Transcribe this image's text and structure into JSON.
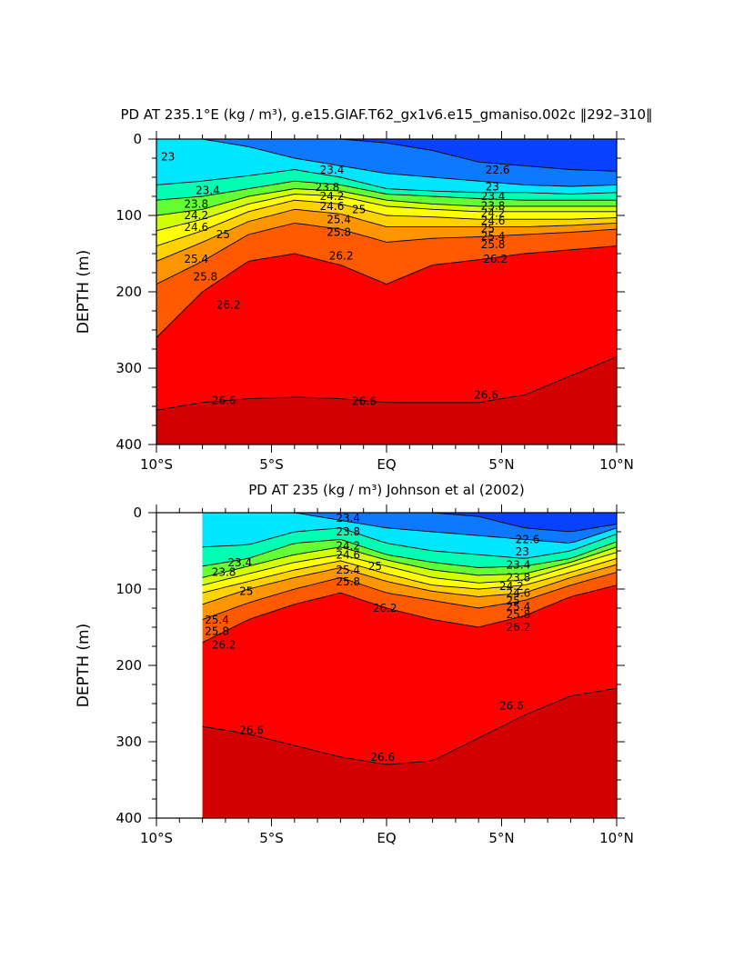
{
  "chart_data": [
    {
      "type": "contour",
      "title": "PD AT 235.1°E (kg / m³), g.e15.GIAF.T62_gx1v6.e15_gmaniso.002c  ‖292–310‖",
      "xlabel": "",
      "ylabel": "DEPTH (m)",
      "xlim": [
        -10,
        10
      ],
      "ylim": [
        400,
        0
      ],
      "x_ticks": [
        -10,
        -5,
        0,
        5,
        10
      ],
      "x_tick_labels": [
        "10°S",
        "5°S",
        "EQ",
        "5°N",
        "10°N"
      ],
      "y_ticks": [
        0,
        100,
        200,
        300,
        400
      ],
      "y_tick_labels": [
        "0",
        "100",
        "200",
        "300",
        "400"
      ],
      "data_xmin": -10,
      "contour_levels": [
        22.6,
        23.0,
        23.4,
        23.8,
        24.2,
        24.6,
        25.0,
        25.4,
        25.8,
        26.2,
        26.6
      ],
      "isopycnal_depth_at_lat": {
        "lat": [
          -10,
          -8,
          -6,
          -4,
          -2,
          0,
          2,
          4,
          6,
          8,
          10
        ],
        "22.6": [
          0,
          0,
          0,
          0,
          0,
          5,
          15,
          30,
          35,
          40,
          42
        ],
        "23.0": [
          0,
          0,
          10,
          25,
          35,
          45,
          50,
          55,
          60,
          62,
          60
        ],
        "23.4": [
          60,
          55,
          48,
          40,
          50,
          65,
          68,
          70,
          70,
          72,
          70
        ],
        "23.8": [
          80,
          75,
          65,
          55,
          60,
          72,
          75,
          78,
          80,
          80,
          80
        ],
        "24.2": [
          100,
          92,
          75,
          65,
          68,
          80,
          85,
          88,
          88,
          88,
          88
        ],
        "24.6": [
          120,
          105,
          85,
          72,
          75,
          88,
          92,
          95,
          95,
          95,
          95
        ],
        "25.0": [
          140,
          120,
          95,
          80,
          85,
          100,
          102,
          105,
          105,
          105,
          103
        ],
        "25.4": [
          160,
          135,
          108,
          92,
          98,
          115,
          115,
          115,
          115,
          113,
          110
        ],
        "25.8": [
          190,
          160,
          125,
          110,
          118,
          135,
          130,
          128,
          125,
          122,
          118
        ],
        "26.2": [
          260,
          200,
          160,
          150,
          165,
          190,
          165,
          158,
          150,
          145,
          140
        ],
        "26.6": [
          355,
          345,
          340,
          338,
          340,
          345,
          345,
          345,
          335,
          310,
          285
        ]
      },
      "labels": [
        {
          "text": "23",
          "lat": -9.8,
          "depth": 28
        },
        {
          "text": "23.4",
          "lat": -8.3,
          "depth": 72
        },
        {
          "text": "23.8",
          "lat": -8.8,
          "depth": 90
        },
        {
          "text": "24.2",
          "lat": -8.8,
          "depth": 105
        },
        {
          "text": "24.6",
          "lat": -8.8,
          "depth": 120
        },
        {
          "text": "25",
          "lat": -7.4,
          "depth": 130
        },
        {
          "text": "25.4",
          "lat": -8.8,
          "depth": 162
        },
        {
          "text": "25.8",
          "lat": -8.4,
          "depth": 185
        },
        {
          "text": "26.2",
          "lat": -7.4,
          "depth": 222
        },
        {
          "text": "23.4",
          "lat": -2.9,
          "depth": 45
        },
        {
          "text": "23.8",
          "lat": -3.1,
          "depth": 68
        },
        {
          "text": "24.2",
          "lat": -2.9,
          "depth": 80
        },
        {
          "text": "24.6",
          "lat": -2.9,
          "depth": 93
        },
        {
          "text": "25",
          "lat": -1.5,
          "depth": 97
        },
        {
          "text": "25.4",
          "lat": -2.6,
          "depth": 110
        },
        {
          "text": "25.8",
          "lat": -2.6,
          "depth": 127
        },
        {
          "text": "26.2",
          "lat": -2.5,
          "depth": 158
        },
        {
          "text": "22.6",
          "lat": 4.3,
          "depth": 45
        },
        {
          "text": "23",
          "lat": 4.3,
          "depth": 67
        },
        {
          "text": "23.4",
          "lat": 4.1,
          "depth": 80
        },
        {
          "text": "23.8",
          "lat": 4.1,
          "depth": 92
        },
        {
          "text": "24.2",
          "lat": 4.1,
          "depth": 102
        },
        {
          "text": "24.6",
          "lat": 4.1,
          "depth": 112
        },
        {
          "text": "25",
          "lat": 4.1,
          "depth": 122
        },
        {
          "text": "25.4",
          "lat": 4.1,
          "depth": 132
        },
        {
          "text": "25.8",
          "lat": 4.1,
          "depth": 143
        },
        {
          "text": "26.2",
          "lat": 4.2,
          "depth": 162
        },
        {
          "text": "26.6",
          "lat": -7.6,
          "depth": 347
        },
        {
          "text": "26.6",
          "lat": -1.5,
          "depth": 348
        },
        {
          "text": "26.6",
          "lat": 3.8,
          "depth": 340
        }
      ]
    },
    {
      "type": "contour",
      "title": "PD AT 235 (kg / m³) Johnson et al (2002)",
      "xlabel": "",
      "ylabel": "DEPTH (m)",
      "xlim": [
        -10,
        10
      ],
      "ylim": [
        400,
        0
      ],
      "x_ticks": [
        -10,
        -5,
        0,
        5,
        10
      ],
      "x_tick_labels": [
        "10°S",
        "5°S",
        "EQ",
        "5°N",
        "10°N"
      ],
      "y_ticks": [
        0,
        100,
        200,
        300,
        400
      ],
      "y_tick_labels": [
        "0",
        "100",
        "200",
        "300",
        "400"
      ],
      "data_xmin": -8,
      "contour_levels": [
        22.6,
        23.0,
        23.4,
        23.8,
        24.2,
        24.6,
        25.0,
        25.4,
        25.8,
        26.2,
        26.6
      ],
      "isopycnal_depth_at_lat": {
        "lat": [
          -8,
          -6,
          -4,
          -2,
          0,
          2,
          4,
          6,
          8,
          10
        ],
        "22.6": [
          0,
          0,
          0,
          0,
          0,
          0,
          5,
          20,
          25,
          15
        ],
        "23.0": [
          0,
          0,
          0,
          10,
          20,
          25,
          30,
          35,
          40,
          20
        ],
        "23.4": [
          45,
          42,
          25,
          20,
          40,
          50,
          55,
          60,
          50,
          28
        ],
        "23.8": [
          70,
          60,
          40,
          35,
          55,
          65,
          72,
          70,
          60,
          38
        ],
        "24.2": [
          85,
          70,
          55,
          45,
          62,
          75,
          82,
          80,
          65,
          45
        ],
        "24.6": [
          95,
          80,
          65,
          55,
          70,
          85,
          92,
          88,
          70,
          52
        ],
        "25.0": [
          105,
          90,
          75,
          63,
          80,
          95,
          100,
          95,
          78,
          60
        ],
        "25.4": [
          120,
          100,
          85,
          72,
          90,
          103,
          110,
          105,
          85,
          68
        ],
        "25.8": [
          140,
          118,
          100,
          85,
          105,
          115,
          125,
          115,
          95,
          78
        ],
        "26.2": [
          170,
          140,
          120,
          105,
          125,
          140,
          150,
          135,
          110,
          95
        ],
        "26.6": [
          280,
          290,
          305,
          320,
          330,
          325,
          295,
          265,
          240,
          230
        ]
      },
      "labels": [
        {
          "text": "23.8",
          "lat": -7.6,
          "depth": 83
        },
        {
          "text": "23.4",
          "lat": -6.9,
          "depth": 70
        },
        {
          "text": "25",
          "lat": -6.4,
          "depth": 108
        },
        {
          "text": "25.4",
          "lat": -7.9,
          "depth": 145
        },
        {
          "text": "25.8",
          "lat": -7.9,
          "depth": 160
        },
        {
          "text": "26.2",
          "lat": -7.6,
          "depth": 178
        },
        {
          "text": "23.4",
          "lat": -2.2,
          "depth": 12
        },
        {
          "text": "23.8",
          "lat": -2.2,
          "depth": 30
        },
        {
          "text": "24.2",
          "lat": -2.2,
          "depth": 48
        },
        {
          "text": "24.6",
          "lat": -2.2,
          "depth": 60
        },
        {
          "text": "25",
          "lat": -0.8,
          "depth": 75
        },
        {
          "text": "25.4",
          "lat": -2.2,
          "depth": 80
        },
        {
          "text": "25.8",
          "lat": -2.2,
          "depth": 95
        },
        {
          "text": "26.2",
          "lat": -0.6,
          "depth": 130
        },
        {
          "text": "22.6",
          "lat": 5.6,
          "depth": 40
        },
        {
          "text": "23",
          "lat": 5.6,
          "depth": 56
        },
        {
          "text": "23.4",
          "lat": 5.2,
          "depth": 73
        },
        {
          "text": "23.8",
          "lat": 5.2,
          "depth": 90
        },
        {
          "text": "24.2",
          "lat": 4.9,
          "depth": 101
        },
        {
          "text": "24.6",
          "lat": 5.2,
          "depth": 110
        },
        {
          "text": "25",
          "lat": 5.2,
          "depth": 120
        },
        {
          "text": "25.4",
          "lat": 5.2,
          "depth": 128
        },
        {
          "text": "25.8",
          "lat": 5.2,
          "depth": 138
        },
        {
          "text": "26.2",
          "lat": 5.2,
          "depth": 155
        },
        {
          "text": "26.6",
          "lat": -6.4,
          "depth": 290
        },
        {
          "text": "26.6",
          "lat": -0.7,
          "depth": 325
        },
        {
          "text": "26.6",
          "lat": 4.9,
          "depth": 258
        }
      ]
    }
  ],
  "colors": {
    "outline": "#000000",
    "fill_scale": [
      "#5a00ff",
      "#0000ff",
      "#0f78ff",
      "#00beff",
      "#00e6ff",
      "#00ffb4",
      "#64ff32",
      "#d2ff00",
      "#ffff00",
      "#ffd200",
      "#ff9600",
      "#ff5a00",
      "#ff0000",
      "#d20000"
    ]
  }
}
